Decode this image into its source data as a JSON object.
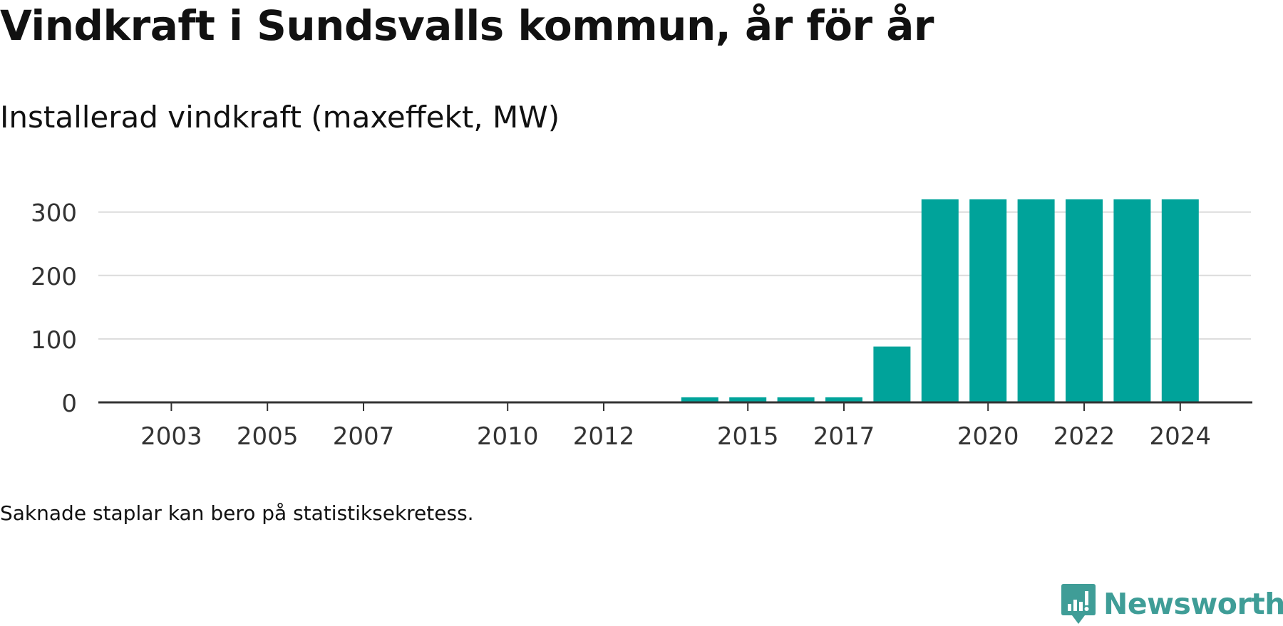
{
  "title": "Vindkraft i Sundsvalls kommun, år för år",
  "subtitle": "Installerad vindkraft (maxeffekt, MW)",
  "footnote": "Saknade staplar kan bero på statistiksekretess.",
  "brand": {
    "name": "Newsworthy",
    "icon": "newsworthy-logo-icon",
    "color": "#3f9d97"
  },
  "colors": {
    "bar": "#00a39a",
    "grid": "#dcdcdc",
    "axis": "#333333",
    "text": "#111111"
  },
  "chart_data": {
    "type": "bar",
    "title": "Vindkraft i Sundsvalls kommun, år för år",
    "subtitle": "Installerad vindkraft (maxeffekt, MW)",
    "xlabel": "",
    "ylabel": "",
    "x": [
      2002,
      2003,
      2004,
      2005,
      2006,
      2007,
      2008,
      2009,
      2010,
      2011,
      2012,
      2013,
      2014,
      2015,
      2016,
      2017,
      2018,
      2019,
      2020,
      2021,
      2022,
      2023,
      2024
    ],
    "values": [
      null,
      null,
      null,
      null,
      null,
      null,
      null,
      null,
      null,
      null,
      null,
      null,
      8,
      8,
      8,
      8,
      88,
      320,
      320,
      320,
      320,
      320,
      320
    ],
    "ylim": [
      0,
      320
    ],
    "yticks": [
      0,
      100,
      200,
      300
    ],
    "xticks": [
      2003,
      2005,
      2007,
      2010,
      2012,
      2015,
      2017,
      2020,
      2022,
      2024
    ],
    "grid": true,
    "legend": "none"
  }
}
